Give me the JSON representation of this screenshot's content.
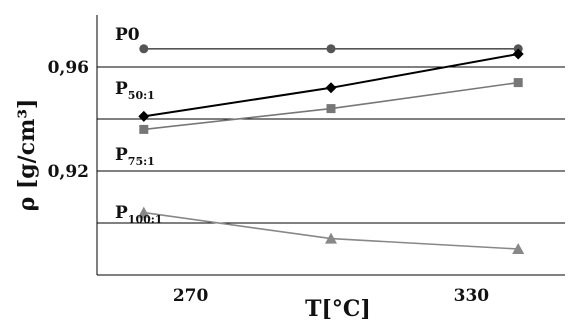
{
  "chart_data": {
    "type": "line",
    "title": "",
    "xlabel": "T[°C]",
    "ylabel": "ρ [g/cm³]",
    "x_ticks": [
      "270",
      "330"
    ],
    "y_ticks": [
      "0,92",
      "0,96"
    ],
    "xlim": [
      250,
      350
    ],
    "ylim": [
      0.88,
      0.98
    ],
    "grid": "horizontal",
    "legend": "inline labels",
    "x": [
      260,
      300,
      340
    ],
    "series": [
      {
        "name": "P0",
        "label_main": "P0",
        "label_sub": "",
        "marker": "circle",
        "color": "#555555",
        "values": [
          0.967,
          0.967,
          0.967
        ]
      },
      {
        "name": "P50:1",
        "label_main": "P",
        "label_sub": "50:1",
        "marker": "diamond",
        "color": "#000000",
        "values": [
          0.941,
          0.952,
          0.965
        ]
      },
      {
        "name": "P75:1",
        "label_main": "P",
        "label_sub": "75:1",
        "marker": "square",
        "color": "#777777",
        "values": [
          0.936,
          0.944,
          0.954
        ]
      },
      {
        "name": "P100:1",
        "label_main": "P",
        "label_sub": "100:1",
        "marker": "triangle",
        "color": "#888888",
        "values": [
          0.904,
          0.894,
          0.89
        ]
      }
    ]
  }
}
